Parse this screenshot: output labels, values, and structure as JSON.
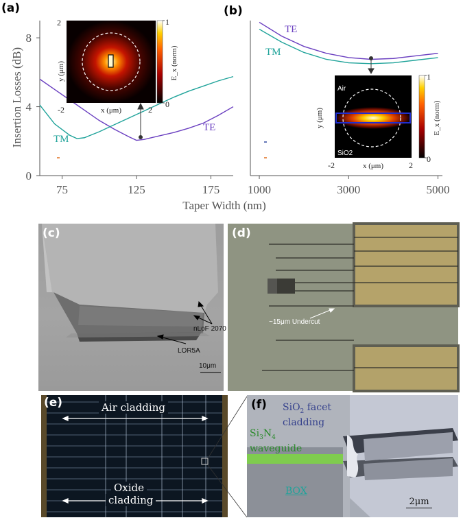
{
  "panels": {
    "a": "(a)",
    "b": "(b)",
    "c": "(c)",
    "d": "(d)",
    "e": "(e)",
    "f": "(f)"
  },
  "chart_data": [
    {
      "type": "line",
      "panel": "a",
      "xlabel": "Taper Width (nm)",
      "ylabel": "Insertion Losses (dB)",
      "xlim": [
        60,
        190
      ],
      "ylim": [
        0,
        9
      ],
      "xticks": [
        75,
        125,
        175
      ],
      "yticks": [
        0,
        4,
        8
      ],
      "series": [
        {
          "name": "TE",
          "color": "#6a3fc0",
          "x": [
            60,
            70,
            80,
            90,
            100,
            110,
            120,
            125,
            130,
            140,
            150,
            160,
            170,
            180,
            190
          ],
          "y": [
            5.6,
            5.0,
            4.4,
            3.8,
            3.2,
            2.7,
            2.25,
            2.05,
            2.1,
            2.3,
            2.5,
            2.75,
            3.05,
            3.5,
            4.0
          ]
        },
        {
          "name": "TM",
          "color": "#1fa39a",
          "x": [
            60,
            70,
            80,
            85,
            90,
            100,
            110,
            120,
            130,
            140,
            150,
            160,
            170,
            180,
            190
          ],
          "y": [
            4.1,
            3.0,
            2.35,
            2.15,
            2.2,
            2.55,
            2.95,
            3.35,
            3.75,
            4.15,
            4.55,
            4.9,
            5.2,
            5.5,
            5.75
          ]
        }
      ]
    },
    {
      "type": "line",
      "panel": "b",
      "xlim": [
        800,
        5100
      ],
      "ylim": [
        0,
        9
      ],
      "xticks": [
        1000,
        3000,
        5000
      ],
      "series": [
        {
          "name": "TE",
          "color": "#6a3fc0",
          "x": [
            1000,
            1500,
            2000,
            2500,
            3000,
            3500,
            4000,
            4500,
            5000
          ],
          "y": [
            8.9,
            8.1,
            7.5,
            7.1,
            6.85,
            6.75,
            6.8,
            6.95,
            7.1
          ]
        },
        {
          "name": "TM",
          "color": "#1fa39a",
          "x": [
            1000,
            1500,
            2000,
            2500,
            3000,
            3500,
            4000,
            4500,
            5000
          ],
          "y": [
            8.5,
            7.75,
            7.15,
            6.75,
            6.55,
            6.5,
            6.55,
            6.7,
            6.85
          ]
        }
      ]
    }
  ],
  "inset_a": {
    "ylabel": "y (μm)",
    "xlabel": "x (μm)",
    "cbar_label": "E_x (norm)",
    "tick_2": "2",
    "tick_m2": "-2",
    "tick_x2": "2",
    "tick_xm2": "-2",
    "tick_0": "0",
    "tick_1": "1"
  },
  "inset_b": {
    "air": "Air",
    "sio2": "SiO2",
    "ylabel": "y (μm)",
    "xlabel": "x (μm)",
    "cbar_label": "E_x (norm)",
    "tick_xm2": "-2",
    "tick_x2": "2",
    "tick_0": "0",
    "tick_1": "1"
  },
  "sem_c": {
    "nlof": "nLoF 2070",
    "lor": "LOR5A",
    "scale": "10μm"
  },
  "micro_d": {
    "undercut": "~15μm Undercut"
  },
  "micro_e": {
    "air": "Air cladding",
    "oxide1": "Oxide",
    "oxide2": "cladding"
  },
  "sem_f": {
    "facet_pre": "SiO",
    "facet_sub": "2",
    "facet_post": " facet",
    "facet2": "cladding",
    "wg_pre": "Si",
    "wg_sub1": "3",
    "wg_mid": "N",
    "wg_sub2": "4",
    "wg2": "waveguide",
    "box": "BOX",
    "scale": "2μm"
  },
  "colors": {
    "te": "#6a3fc0",
    "tm": "#1fa39a",
    "arrow": "#333333",
    "facet_text": "#34408c",
    "wg_text": "#2a8a2a",
    "box_text": "#1fa39a"
  }
}
